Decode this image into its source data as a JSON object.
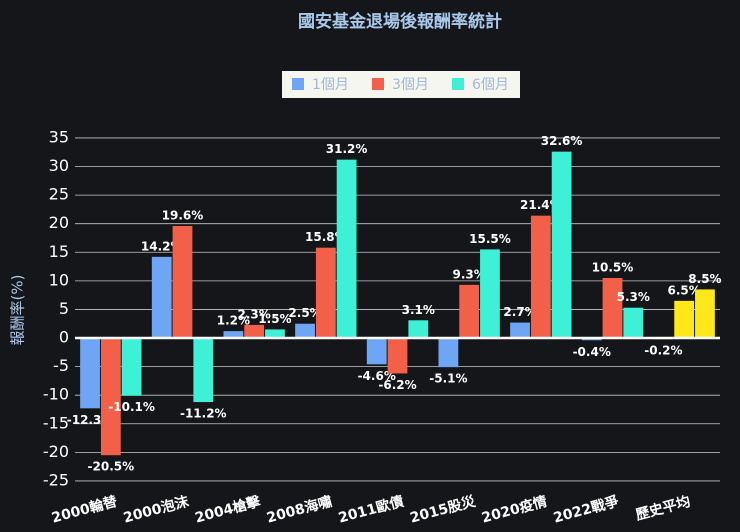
{
  "chart_data": {
    "type": "bar",
    "title": "國安基金退場後報酬率統計",
    "y_label": "報酬率(%)",
    "categories": [
      "2000輪替",
      "2000泡沫",
      "2004槍擊",
      "2008海嘯",
      "2011歐債",
      "2015股災",
      "2020疫情",
      "2022戰爭",
      "歷史平均"
    ],
    "series": [
      {
        "name": "1個月",
        "color": "#6ea6f5",
        "point_colors": [
          "#6ea6f5",
          "#6ea6f5",
          "#6ea6f5",
          "#6ea6f5",
          "#6ea6f5",
          "#6ea6f5",
          "#6ea6f5",
          "#6ea6f5",
          "#ffe81a"
        ],
        "values": [
          -12.3,
          14.2,
          1.2,
          2.5,
          -4.6,
          -5.1,
          2.7,
          -0.4,
          -0.2
        ],
        "value_labels": [
          "-12.3%",
          "14.2%",
          "1.2%",
          "2.5%",
          "-4.6%",
          "-5.1%",
          "2.7%",
          "-0.4%",
          "-0.2%"
        ]
      },
      {
        "name": "3個月",
        "color": "#f2604a",
        "point_colors": [
          "#f2604a",
          "#f2604a",
          "#f2604a",
          "#f2604a",
          "#f2604a",
          "#f2604a",
          "#f2604a",
          "#f2604a",
          "#ffe81a"
        ],
        "values": [
          -20.5,
          19.6,
          2.3,
          15.8,
          -6.2,
          9.3,
          21.4,
          10.5,
          6.5
        ],
        "value_labels": [
          "-20.5%",
          "19.6%",
          "2.3%",
          "15.8%",
          "-6.2%",
          "9.3%",
          "21.4%",
          "10.5%",
          "6.5%"
        ]
      },
      {
        "name": "6個月",
        "color": "#3ef0d6",
        "point_colors": [
          "#3ef0d6",
          "#3ef0d6",
          "#3ef0d6",
          "#3ef0d6",
          "#3ef0d6",
          "#3ef0d6",
          "#3ef0d6",
          "#3ef0d6",
          "#ffe81a"
        ],
        "values": [
          -10.1,
          -11.2,
          1.5,
          31.2,
          3.1,
          15.5,
          32.6,
          5.3,
          8.5
        ],
        "value_labels": [
          "-10.1%",
          "-11.2%",
          "1.5%",
          "31.2%",
          "3.1%",
          "15.5%",
          "32.6%",
          "5.3%",
          "8.5%"
        ]
      }
    ],
    "ylim": [
      -26.5,
      37
    ],
    "yticks": [
      -25,
      -20,
      -15,
      -10,
      -5,
      0,
      5,
      10,
      15,
      20,
      25,
      30,
      35
    ],
    "grid": true
  }
}
